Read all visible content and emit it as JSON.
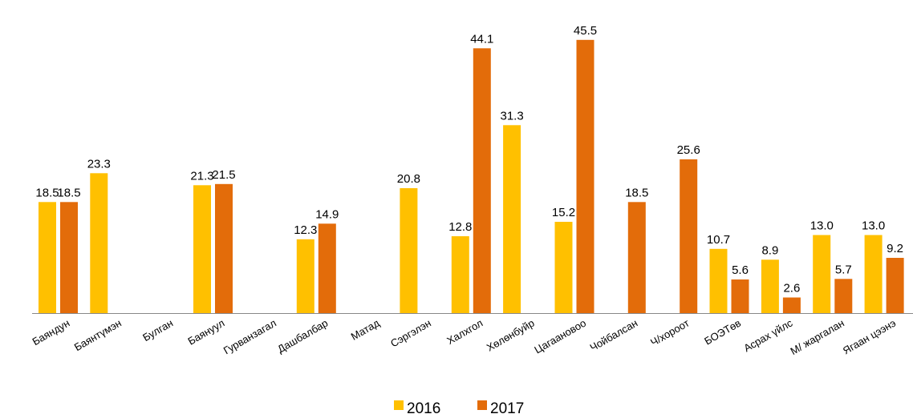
{
  "chart_data": {
    "type": "bar",
    "categories": [
      "Баяндун",
      "Баянтүмэн",
      "Булган",
      "Баянуул",
      "Гурванзагал",
      "Дашбалбар",
      "Матад",
      "Сэргэлэн",
      "Халхгол",
      "Хөлөнбуйр",
      "Цагаановоо",
      "Чойбалсан",
      "Ч/хороот",
      "БОЭТөв",
      "Асрах үйлс",
      "М/ жаргалан",
      "Ягаан цээнэ"
    ],
    "series": [
      {
        "name": "2016",
        "color": "#FFC000",
        "values": [
          18.5,
          23.3,
          null,
          21.3,
          null,
          12.3,
          null,
          20.8,
          12.8,
          31.3,
          15.2,
          null,
          null,
          10.7,
          8.9,
          13.0,
          13.0
        ]
      },
      {
        "name": "2017",
        "color": "#E36C0A",
        "values": [
          18.5,
          null,
          null,
          21.5,
          null,
          14.9,
          null,
          null,
          44.1,
          null,
          45.5,
          18.5,
          25.6,
          5.6,
          2.6,
          5.7,
          9.2
        ]
      }
    ],
    "labels": {
      "2016": [
        "18.5",
        "23.3",
        "",
        "21.3",
        "",
        "12.3",
        "",
        "20.8",
        "12.8",
        "31.3",
        "15.2",
        "",
        "",
        "10.7",
        "8.9",
        "13.0",
        "13.0"
      ],
      "2017": [
        "18.5",
        "",
        "",
        "21.5",
        "",
        "14.9",
        "",
        "",
        "44.1",
        "",
        "45.5",
        "18.5",
        "25.6",
        "5.6",
        "2.6",
        "5.7",
        "9.2"
      ]
    },
    "ylim": [
      0,
      50
    ],
    "grid": false,
    "legend": "bottom-center",
    "title": "",
    "xlabel": "",
    "ylabel": ""
  }
}
